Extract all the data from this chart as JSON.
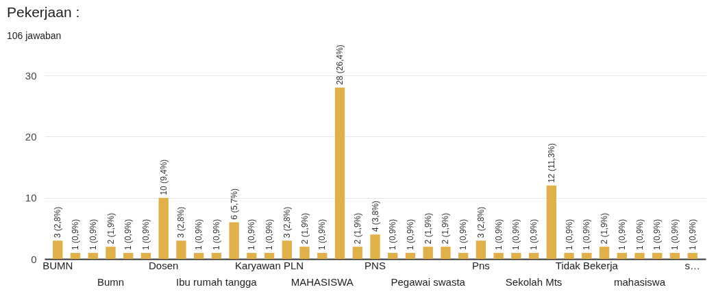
{
  "chart_data": {
    "type": "bar",
    "title": "Pekerjaan :",
    "subtitle": "106 jawaban",
    "categories": [
      "BUMN",
      null,
      null,
      "Bumn",
      null,
      null,
      "Dosen",
      null,
      null,
      "Ibu rumah tangga",
      null,
      null,
      "Karyawan PLN",
      null,
      null,
      "MAHASISWA",
      null,
      null,
      "PNS",
      null,
      null,
      "Pegawai swasta",
      null,
      null,
      "Pns",
      null,
      null,
      "Sekolah Mts",
      null,
      null,
      "Tidak Bekerja",
      null,
      null,
      "mahasiswa",
      null,
      null,
      "s…"
    ],
    "values": [
      3,
      1,
      1,
      2,
      1,
      1,
      10,
      3,
      1,
      1,
      6,
      1,
      1,
      3,
      2,
      1,
      28,
      2,
      4,
      1,
      1,
      2,
      2,
      1,
      3,
      1,
      1,
      1,
      12,
      1,
      1,
      2,
      1,
      1,
      1,
      1,
      1
    ],
    "value_labels": [
      "3 (2,8%)",
      "1 (0,9%)",
      "1 (0,9%)",
      "2 (1,9%)",
      "1 (0,9%)",
      "1 (0,9%)",
      "10 (9,4%)",
      "3 (2,8%)",
      "1 (0,9%)",
      "1 (0,9%)",
      "6 (5,7%)",
      "1 (0,9%)",
      "1 (0,9%)",
      "3 (2,8%)",
      "2 (1,9%)",
      "1 (0,9%)",
      "28 (26,4%)",
      "2 (1,9%)",
      "4 (3,8%)",
      "1 (0,9%)",
      "1 (0,9%)",
      "2 (1,9%)",
      "2 (1,9%)",
      "1 (0,9%)",
      "3 (2,8%)",
      "1 (0,9%)",
      "1 (0,9%)",
      "1 (0,9%)",
      "12 (11,3%)",
      "1 (0,9%)",
      "1 (0,9%)",
      "2 (1,9%)",
      "1 (0,9%)",
      "1 (0,9%)",
      "1 (0,9%)",
      "1 (0,9%)",
      "1 (0,9%)"
    ],
    "color": "#e0b04b",
    "ylim": [
      0,
      30
    ],
    "yticks": [
      0,
      10,
      20,
      30
    ],
    "grid": "y"
  }
}
